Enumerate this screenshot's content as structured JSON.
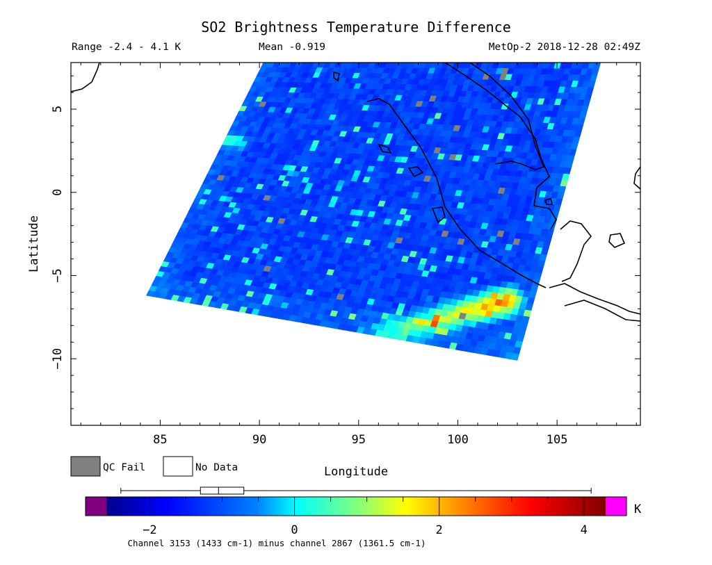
{
  "header": {
    "title": "SO2 Brightness Temperature Difference",
    "range": "Range -2.4 - 4.1 K",
    "mean": "Mean -0.919",
    "instrument_time": "MetOp-2 2018-12-28 02:49Z"
  },
  "chart_data": {
    "type": "heatmap",
    "title": "SO2 Brightness Temperature Difference",
    "xlabel": "Longitude",
    "ylabel": "Latitude",
    "xlim": [
      80.5,
      109.2
    ],
    "ylim": [
      -14,
      7.8
    ],
    "x_ticks": [
      85,
      90,
      95,
      100,
      105
    ],
    "x_tick_labels": [
      "85",
      "90",
      "95",
      "100",
      "105"
    ],
    "y_ticks": [
      5,
      0,
      -5,
      -10
    ],
    "y_tick_labels": [
      "5",
      "0",
      "−5",
      "−10"
    ],
    "swath_corners_lonlat": [
      [
        90.2,
        7.8
      ],
      [
        107.2,
        7.8
      ],
      [
        103.0,
        -10.1
      ],
      [
        84.3,
        -6.2
      ]
    ],
    "range_min": -2.4,
    "range_max": 4.1,
    "mean": -0.919,
    "units": "K",
    "plumes": [
      {
        "lon_start": 95.8,
        "lat_start": -8.7,
        "lon_end": 102.5,
        "lat_end": -6.5,
        "value": 3.0
      },
      {
        "lon_start": 84.5,
        "lat_start": 3.8,
        "lon_end": 89.0,
        "lat_start2": 3.0,
        "lat_end": 3.0,
        "value": 0.6
      }
    ],
    "colorbar": {
      "min": -2.6,
      "max": 4.3,
      "tick_values": [
        -2,
        0,
        2,
        4
      ],
      "tick_labels": [
        "−2",
        "0",
        "2",
        "4"
      ],
      "unit_label": "K",
      "under_color": "#800080",
      "over_color": "#ff00ff"
    },
    "boxplot": {
      "whisker_low": -2.4,
      "q1": -1.3,
      "median": -1.05,
      "q3": -0.7,
      "whisker_high": 4.1
    },
    "legend": [
      {
        "label": "QC Fail",
        "color": "#808080"
      },
      {
        "label": "No Data",
        "color": "#ffffff"
      }
    ],
    "footnote": "Channel 3153 (1433 cm-1) minus channel 2867 (1361.5 cm-1)"
  }
}
